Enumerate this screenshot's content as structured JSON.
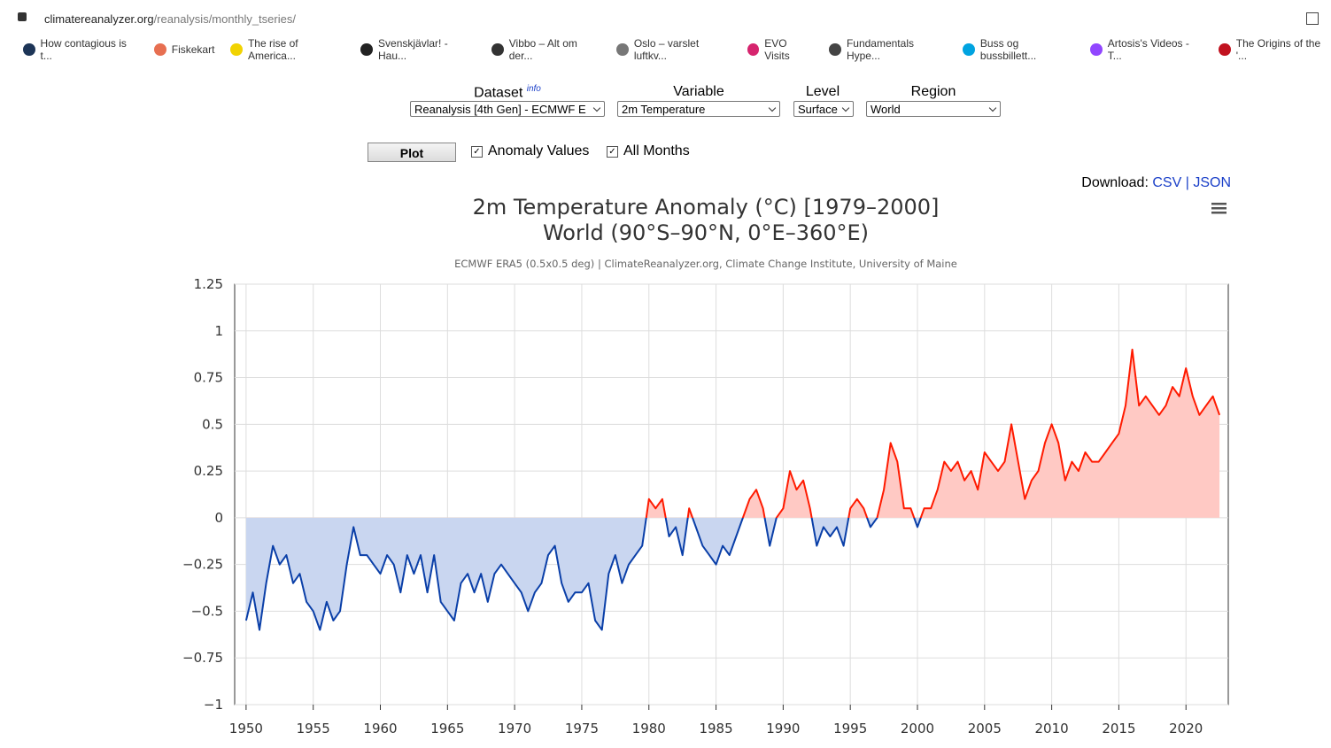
{
  "browser": {
    "url_host": "climatereanalyzer.org",
    "url_path": "/reanalysis/monthly_tseries/",
    "bookmarks": [
      "How contagious is t...",
      "Fiskekart",
      "The rise of America...",
      "Svenskjävlar! - Hau...",
      "Vibbo – Alt om der...",
      "Oslo – varslet luftkv...",
      "EVO Visits",
      "Fundamentals Hype...",
      "Buss og bussbillett...",
      "Artosis's Videos - T...",
      "The Origins of the '..."
    ]
  },
  "form": {
    "dataset_label": "Dataset",
    "dataset_info": "info",
    "dataset_value": "Reanalysis [4th Gen] - ECMWF E",
    "variable_label": "Variable",
    "variable_value": "2m Temperature",
    "level_label": "Level",
    "level_value": "Surface",
    "region_label": "Region",
    "region_value": "World",
    "plot_button": "Plot",
    "anomaly_checkbox": "Anomaly Values",
    "months_checkbox": "All Months",
    "download_label": "Download:",
    "download_csv": "CSV",
    "download_sep": "|",
    "download_json": "JSON"
  },
  "chart_data": {
    "type": "area-line",
    "title": "2m Temperature Anomaly (°C) [1979–2000]",
    "subtitle": "World (90°S–90°N, 0°E–360°E)",
    "credit": "ECMWF ERA5 (0.5x0.5 deg) | ClimateReanalyzer.org, Climate Change Institute, University of Maine",
    "x": [
      1950,
      1950.5,
      1951,
      1951.5,
      1952,
      1952.5,
      1953,
      1953.5,
      1954,
      1954.5,
      1955,
      1955.5,
      1956,
      1956.5,
      1957,
      1957.5,
      1958,
      1958.5,
      1959,
      1959.5,
      1960,
      1960.5,
      1961,
      1961.5,
      1962,
      1962.5,
      1963,
      1963.5,
      1964,
      1964.5,
      1965,
      1965.5,
      1966,
      1966.5,
      1967,
      1967.5,
      1968,
      1968.5,
      1969,
      1969.5,
      1970,
      1970.5,
      1971,
      1971.5,
      1972,
      1972.5,
      1973,
      1973.5,
      1974,
      1974.5,
      1975,
      1975.5,
      1976,
      1976.5,
      1977,
      1977.5,
      1978,
      1978.5,
      1979,
      1979.5,
      1980,
      1980.5,
      1981,
      1981.5,
      1982,
      1982.5,
      1983,
      1983.5,
      1984,
      1984.5,
      1985,
      1985.5,
      1986,
      1986.5,
      1987,
      1987.5,
      1988,
      1988.5,
      1989,
      1989.5,
      1990,
      1990.5,
      1991,
      1991.5,
      1992,
      1992.5,
      1993,
      1993.5,
      1994,
      1994.5,
      1995,
      1995.5,
      1996,
      1996.5,
      1997,
      1997.5,
      1998,
      1998.5,
      1999,
      1999.5,
      2000,
      2000.5,
      2001,
      2001.5,
      2002,
      2002.5,
      2003,
      2003.5,
      2004,
      2004.5,
      2005,
      2005.5,
      2006,
      2006.5,
      2007,
      2007.5,
      2008,
      2008.5,
      2009,
      2009.5,
      2010,
      2010.5,
      2011,
      2011.5,
      2012,
      2012.5,
      2013,
      2013.5,
      2014,
      2014.5,
      2015,
      2015.5,
      2016,
      2016.5,
      2017,
      2017.5,
      2018,
      2018.5,
      2019,
      2019.5,
      2020,
      2020.5,
      2021,
      2021.5,
      2022,
      2022.5
    ],
    "values": [
      -0.55,
      -0.4,
      -0.6,
      -0.35,
      -0.15,
      -0.25,
      -0.2,
      -0.35,
      -0.3,
      -0.45,
      -0.5,
      -0.6,
      -0.45,
      -0.55,
      -0.5,
      -0.25,
      -0.05,
      -0.2,
      -0.2,
      -0.25,
      -0.3,
      -0.2,
      -0.25,
      -0.4,
      -0.2,
      -0.3,
      -0.2,
      -0.4,
      -0.2,
      -0.45,
      -0.5,
      -0.55,
      -0.35,
      -0.3,
      -0.4,
      -0.3,
      -0.45,
      -0.3,
      -0.25,
      -0.3,
      -0.35,
      -0.4,
      -0.5,
      -0.4,
      -0.35,
      -0.2,
      -0.15,
      -0.35,
      -0.45,
      -0.4,
      -0.4,
      -0.35,
      -0.55,
      -0.6,
      -0.3,
      -0.2,
      -0.35,
      -0.25,
      -0.2,
      -0.15,
      0.1,
      0.05,
      0.1,
      -0.1,
      -0.05,
      -0.2,
      0.05,
      -0.05,
      -0.15,
      -0.2,
      -0.25,
      -0.15,
      -0.2,
      -0.1,
      0,
      0.1,
      0.15,
      0.05,
      -0.15,
      0,
      0.05,
      0.25,
      0.15,
      0.2,
      0.05,
      -0.15,
      -0.05,
      -0.1,
      -0.05,
      -0.15,
      0.05,
      0.1,
      0.05,
      -0.05,
      0,
      0.15,
      0.4,
      0.3,
      0.05,
      0.05,
      -0.05,
      0.05,
      0.05,
      0.15,
      0.3,
      0.25,
      0.3,
      0.2,
      0.25,
      0.15,
      0.35,
      0.3,
      0.25,
      0.3,
      0.5,
      0.3,
      0.1,
      0.2,
      0.25,
      0.4,
      0.5,
      0.4,
      0.2,
      0.3,
      0.25,
      0.35,
      0.3,
      0.3,
      0.35,
      0.4,
      0.45,
      0.6,
      0.9,
      0.6,
      0.65,
      0.6,
      0.55,
      0.6,
      0.7,
      0.65,
      0.8,
      0.65,
      0.55,
      0.6,
      0.65,
      0.55
    ],
    "line_colors": {
      "above": "#ff1a00",
      "below": "#0a3fa8"
    },
    "fill_colors": {
      "above": "#ffc9c4",
      "below": "#c9d6f0"
    },
    "xlim": [
      1949.15,
      2023.15
    ],
    "xticks": [
      1950,
      1955,
      1960,
      1965,
      1970,
      1975,
      1980,
      1985,
      1990,
      1995,
      2000,
      2005,
      2010,
      2015,
      2020
    ],
    "ylim": [
      -1,
      1.25
    ],
    "yticks": [
      {
        "value": -1,
        "label": "−1"
      },
      {
        "value": -0.75,
        "label": "−0.75"
      },
      {
        "value": -0.5,
        "label": "−0.5"
      },
      {
        "value": -0.25,
        "label": "−0.25"
      },
      0,
      0.25,
      0.5,
      0.75,
      1,
      1.25
    ],
    "grid": true
  }
}
